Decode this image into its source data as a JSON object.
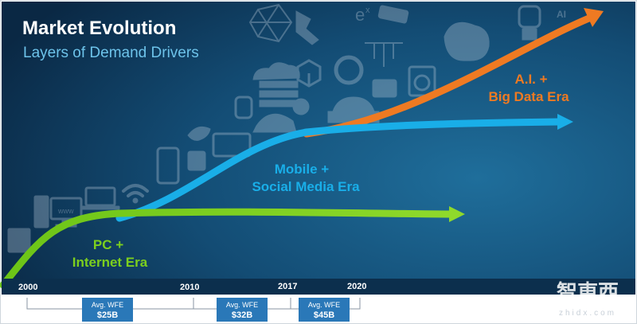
{
  "title": "Market Evolution",
  "subtitle": "Layers of Demand Drivers",
  "eras": [
    {
      "line1": "PC +",
      "line2": "Internet Era",
      "color": "#7ccf1e"
    },
    {
      "line1": "Mobile +",
      "line2": "Social Media Era",
      "color": "#19aee8"
    },
    {
      "line1": "A.I. +",
      "line2": "Big Data Era",
      "color": "#ef7a22"
    }
  ],
  "timeline": {
    "years": [
      "2000",
      "2010",
      "2017",
      "2020"
    ],
    "segments": [
      {
        "label": "Avg. WFE",
        "value": "$25B"
      },
      {
        "label": "Avg. WFE",
        "value": "$32B"
      },
      {
        "label": "Avg. WFE",
        "value": "$45B"
      }
    ]
  },
  "icon_text": {
    "ai": "AI",
    "www": "www",
    "e_sup": "e",
    "x_sup": "x"
  },
  "watermark": {
    "cn": "智東西",
    "latin": "zhidx.com"
  },
  "colors": {
    "background_top": "#1f6e9b",
    "background_bottom": "#0a2844",
    "timeline_bar": "#0c2f4d",
    "label_box": "#2a78b8"
  }
}
